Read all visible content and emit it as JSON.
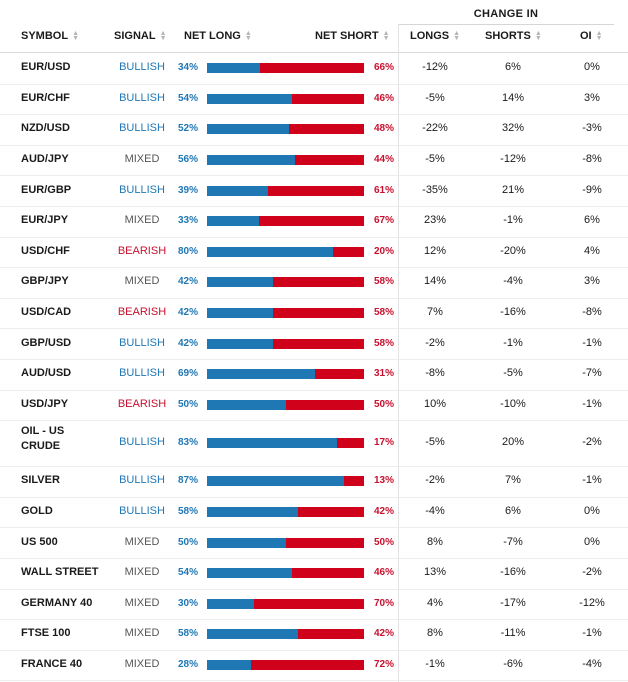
{
  "header": {
    "group_label": "CHANGE IN",
    "symbol": "SYMBOL",
    "signal": "SIGNAL",
    "net_long": "NET LONG",
    "net_short": "NET SHORT",
    "longs": "LONGS",
    "shorts": "SHORTS",
    "oi": "OI"
  },
  "colors": {
    "bullish": "#1f77b4",
    "bearish": "#c8102e",
    "mixed": "#555555",
    "long_bar": "#1f77b4",
    "short_bar": "#d0021b"
  },
  "rows": [
    {
      "symbol": "EUR/USD",
      "signal": "BULLISH",
      "net_long": "34%",
      "net_short": "66%",
      "long_frac": 0.34,
      "longs": "-12%",
      "shorts": "6%",
      "oi": "0%"
    },
    {
      "symbol": "EUR/CHF",
      "signal": "BULLISH",
      "net_long": "54%",
      "net_short": "46%",
      "long_frac": 0.54,
      "longs": "-5%",
      "shorts": "14%",
      "oi": "3%"
    },
    {
      "symbol": "NZD/USD",
      "signal": "BULLISH",
      "net_long": "52%",
      "net_short": "48%",
      "long_frac": 0.52,
      "longs": "-22%",
      "shorts": "32%",
      "oi": "-3%"
    },
    {
      "symbol": "AUD/JPY",
      "signal": "MIXED",
      "net_long": "56%",
      "net_short": "44%",
      "long_frac": 0.56,
      "longs": "-5%",
      "shorts": "-12%",
      "oi": "-8%"
    },
    {
      "symbol": "EUR/GBP",
      "signal": "BULLISH",
      "net_long": "39%",
      "net_short": "61%",
      "long_frac": 0.39,
      "longs": "-35%",
      "shorts": "21%",
      "oi": "-9%"
    },
    {
      "symbol": "EUR/JPY",
      "signal": "MIXED",
      "net_long": "33%",
      "net_short": "67%",
      "long_frac": 0.33,
      "longs": "23%",
      "shorts": "-1%",
      "oi": "6%"
    },
    {
      "symbol": "USD/CHF",
      "signal": "BEARISH",
      "net_long": "80%",
      "net_short": "20%",
      "long_frac": 0.8,
      "longs": "12%",
      "shorts": "-20%",
      "oi": "4%"
    },
    {
      "symbol": "GBP/JPY",
      "signal": "MIXED",
      "net_long": "42%",
      "net_short": "58%",
      "long_frac": 0.42,
      "longs": "14%",
      "shorts": "-4%",
      "oi": "3%"
    },
    {
      "symbol": "USD/CAD",
      "signal": "BEARISH",
      "net_long": "42%",
      "net_short": "58%",
      "long_frac": 0.42,
      "longs": "7%",
      "shorts": "-16%",
      "oi": "-8%"
    },
    {
      "symbol": "GBP/USD",
      "signal": "BULLISH",
      "net_long": "42%",
      "net_short": "58%",
      "long_frac": 0.42,
      "longs": "-2%",
      "shorts": "-1%",
      "oi": "-1%"
    },
    {
      "symbol": "AUD/USD",
      "signal": "BULLISH",
      "net_long": "69%",
      "net_short": "31%",
      "long_frac": 0.69,
      "longs": "-8%",
      "shorts": "-5%",
      "oi": "-7%"
    },
    {
      "symbol": "USD/JPY",
      "signal": "BEARISH",
      "net_long": "50%",
      "net_short": "50%",
      "long_frac": 0.5,
      "longs": "10%",
      "shorts": "-10%",
      "oi": "-1%"
    },
    {
      "symbol": "OIL - US CRUDE",
      "symbol_line1": "OIL - US",
      "symbol_line2": "CRUDE",
      "signal": "BULLISH",
      "net_long": "83%",
      "net_short": "17%",
      "long_frac": 0.83,
      "longs": "-5%",
      "shorts": "20%",
      "oi": "-2%"
    },
    {
      "symbol": "SILVER",
      "signal": "BULLISH",
      "net_long": "87%",
      "net_short": "13%",
      "long_frac": 0.87,
      "longs": "-2%",
      "shorts": "7%",
      "oi": "-1%"
    },
    {
      "symbol": "GOLD",
      "signal": "BULLISH",
      "net_long": "58%",
      "net_short": "42%",
      "long_frac": 0.58,
      "longs": "-4%",
      "shorts": "6%",
      "oi": "0%"
    },
    {
      "symbol": "US 500",
      "signal": "MIXED",
      "net_long": "50%",
      "net_short": "50%",
      "long_frac": 0.5,
      "longs": "8%",
      "shorts": "-7%",
      "oi": "0%"
    },
    {
      "symbol": "WALL STREET",
      "signal": "MIXED",
      "net_long": "54%",
      "net_short": "46%",
      "long_frac": 0.54,
      "longs": "13%",
      "shorts": "-16%",
      "oi": "-2%"
    },
    {
      "symbol": "GERMANY 40",
      "signal": "MIXED",
      "net_long": "30%",
      "net_short": "70%",
      "long_frac": 0.3,
      "longs": "4%",
      "shorts": "-17%",
      "oi": "-12%"
    },
    {
      "symbol": "FTSE 100",
      "signal": "MIXED",
      "net_long": "58%",
      "net_short": "42%",
      "long_frac": 0.58,
      "longs": "8%",
      "shorts": "-11%",
      "oi": "-1%"
    },
    {
      "symbol": "FRANCE 40",
      "signal": "MIXED",
      "net_long": "28%",
      "net_short": "72%",
      "long_frac": 0.28,
      "longs": "-1%",
      "shorts": "-6%",
      "oi": "-4%"
    }
  ]
}
